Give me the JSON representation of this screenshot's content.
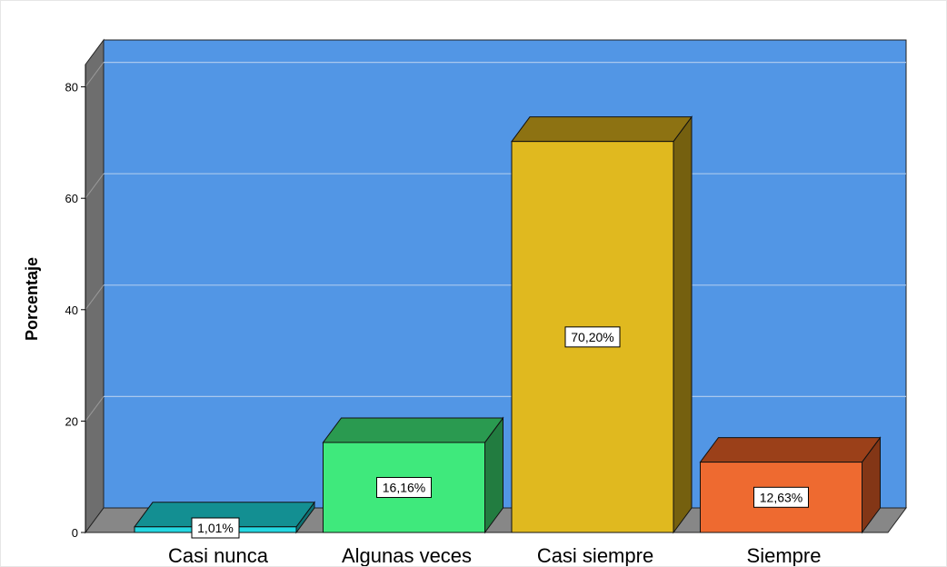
{
  "chart_data": {
    "type": "bar",
    "style": "3d",
    "categories": [
      "Casi nunca",
      "Algunas veces",
      "Casi siempre",
      "Siempre"
    ],
    "values": [
      1.01,
      16.16,
      70.2,
      12.63
    ],
    "data_labels": [
      "1,01%",
      "16,16%",
      "70,20%",
      "12,63%"
    ],
    "ylabel": "Porcentaje",
    "xlabel": "",
    "ylim": [
      0,
      85
    ],
    "yticks": [
      0,
      20,
      40,
      60,
      80
    ],
    "grid": true,
    "legend": "none",
    "colors": {
      "plot_background": "#5296e5",
      "floor": "#878787",
      "left_wall": "#6e6e6e",
      "gridline": "#a9c8ee",
      "bars": [
        {
          "front": "#24d8e2",
          "top": "#138f92",
          "side": "#0f7274"
        },
        {
          "front": "#3fe97c",
          "top": "#2a9a50",
          "side": "#227c40"
        },
        {
          "front": "#e0b91f",
          "top": "#8d7212",
          "side": "#75600f"
        },
        {
          "front": "#ee6a30",
          "top": "#9b4019",
          "side": "#833616"
        }
      ]
    }
  }
}
